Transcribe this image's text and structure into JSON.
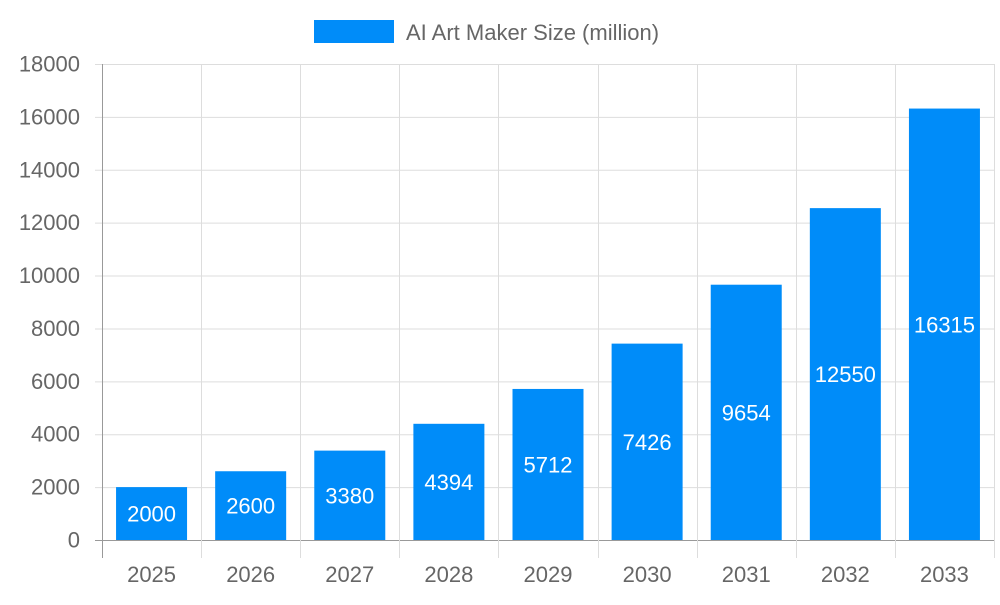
{
  "chart_data": {
    "type": "bar",
    "title": "",
    "xlabel": "",
    "ylabel": "",
    "categories": [
      "2025",
      "2026",
      "2027",
      "2028",
      "2029",
      "2030",
      "2031",
      "2032",
      "2033"
    ],
    "series": [
      {
        "name": "AI Art Maker Size (million)",
        "values": [
          2000,
          2600,
          3380,
          4394,
          5712,
          7426,
          9654,
          12550,
          16315
        ],
        "color": "#008cf9"
      }
    ],
    "ylim": [
      0,
      18000
    ],
    "yticks": [
      0,
      2000,
      4000,
      6000,
      8000,
      10000,
      12000,
      14000,
      16000,
      18000
    ],
    "grid": true,
    "legend": "top-center",
    "data_labels": true
  }
}
